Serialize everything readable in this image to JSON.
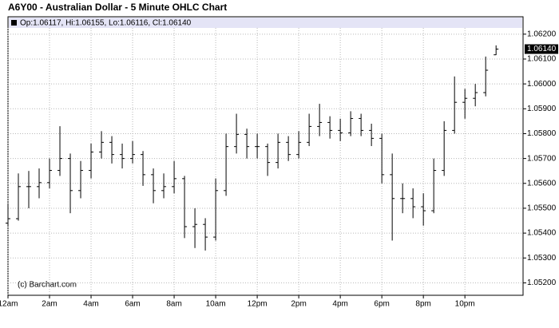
{
  "chart_data": {
    "type": "ohlc",
    "title": "A6Y00 - Australian Dollar - 5 Minute OHLC Chart",
    "legend_text": "Op:1.06117, Hi:1.06155, Lo:1.06116, Cl:1.06140",
    "last_price_label": "1.06140",
    "watermark": "(c) Barchart.com",
    "color": "#000000",
    "grid": true,
    "x": [
      0,
      0.5,
      1,
      1.5,
      2,
      2.5,
      3,
      3.5,
      4,
      4.5,
      5,
      5.5,
      6,
      6.5,
      7,
      7.5,
      8,
      8.5,
      9,
      9.5,
      10,
      10.5,
      11,
      11.5,
      12,
      12.5,
      13,
      13.5,
      14,
      14.5,
      15,
      15.5,
      16,
      16.5,
      17,
      17.5,
      18,
      18.5,
      19,
      19.5,
      20,
      20.5,
      21,
      21.5,
      22,
      22.5,
      23,
      23.5
    ],
    "open": [
      1.0544,
      1.05458,
      1.05587,
      1.05587,
      1.05603,
      1.05652,
      1.057,
      1.05571,
      1.05652,
      1.05726,
      1.05765,
      1.05716,
      1.057,
      1.05716,
      1.05635,
      1.05571,
      1.05587,
      1.05619,
      1.05426,
      1.05435,
      1.05384,
      1.05571,
      1.05748,
      1.05797,
      1.05748,
      1.05748,
      1.05684,
      1.05765,
      1.05716,
      1.05765,
      1.05829,
      1.05845,
      1.05813,
      1.05803,
      1.05861,
      1.05813,
      1.05781,
      1.05635,
      1.05539,
      1.05539,
      1.05506,
      1.0549,
      1.05652,
      1.05813,
      1.05926,
      1.05942,
      1.05965,
      1.06117
    ],
    "high": [
      1.0552,
      1.0564,
      1.0565,
      1.0566,
      1.057,
      1.0583,
      1.0572,
      1.0569,
      1.0576,
      1.0581,
      1.0579,
      1.0576,
      1.0577,
      1.0573,
      1.0566,
      1.0564,
      1.0569,
      1.0563,
      1.055,
      1.0546,
      1.0562,
      1.058,
      1.0588,
      1.0582,
      1.058,
      1.0576,
      1.058,
      1.0579,
      1.0581,
      1.0588,
      1.0592,
      1.0587,
      1.0586,
      1.0589,
      1.0588,
      1.0584,
      1.058,
      1.0572,
      1.056,
      1.0558,
      1.0556,
      1.057,
      1.0585,
      1.0603,
      1.0598,
      1.06,
      1.0611,
      1.06155
    ],
    "low": [
      1.0543,
      1.0545,
      1.055,
      1.0554,
      1.0558,
      1.0563,
      1.0548,
      1.0554,
      1.0562,
      1.057,
      1.0568,
      1.0566,
      1.0568,
      1.0559,
      1.0552,
      1.0554,
      1.0556,
      1.0538,
      1.0534,
      1.0533,
      1.0537,
      1.0555,
      1.0572,
      1.057,
      1.057,
      1.0563,
      1.0566,
      1.0569,
      1.057,
      1.0575,
      1.0579,
      1.0578,
      1.0577,
      1.0579,
      1.0579,
      1.0575,
      1.056,
      1.0537,
      1.0548,
      1.0546,
      1.0543,
      1.0548,
      1.0563,
      1.058,
      1.0586,
      1.0591,
      1.0595,
      1.06116
    ],
    "close": [
      1.05458,
      1.05587,
      1.05587,
      1.05603,
      1.05652,
      1.057,
      1.05571,
      1.05652,
      1.05726,
      1.05765,
      1.05716,
      1.057,
      1.05716,
      1.05635,
      1.05571,
      1.05587,
      1.05619,
      1.05426,
      1.05435,
      1.05384,
      1.05571,
      1.05748,
      1.05797,
      1.05748,
      1.05748,
      1.05684,
      1.05765,
      1.05716,
      1.05765,
      1.05829,
      1.05845,
      1.05813,
      1.05803,
      1.05861,
      1.05813,
      1.05781,
      1.05635,
      1.05539,
      1.05539,
      1.05506,
      1.0549,
      1.05652,
      1.05813,
      1.05926,
      1.05942,
      1.05965,
      1.06055,
      1.0614
    ],
    "xlim": [
      0,
      24.8
    ],
    "xticks": [
      {
        "value": 0,
        "label": "12am"
      },
      {
        "value": 2,
        "label": "2am"
      },
      {
        "value": 4,
        "label": "4am"
      },
      {
        "value": 6,
        "label": "6am"
      },
      {
        "value": 8,
        "label": "8am"
      },
      {
        "value": 10,
        "label": "10am"
      },
      {
        "value": 12,
        "label": "12pm"
      },
      {
        "value": 14,
        "label": "2pm"
      },
      {
        "value": 16,
        "label": "4pm"
      },
      {
        "value": 18,
        "label": "6pm"
      },
      {
        "value": 20,
        "label": "8pm"
      },
      {
        "value": 22,
        "label": "10pm"
      }
    ],
    "ylim": [
      1.0515,
      1.0627
    ],
    "yticks": [
      {
        "value": 1.052,
        "label": "1.05200"
      },
      {
        "value": 1.053,
        "label": "1.05300"
      },
      {
        "value": 1.054,
        "label": "1.05400"
      },
      {
        "value": 1.055,
        "label": "1.05500"
      },
      {
        "value": 1.056,
        "label": "1.05600"
      },
      {
        "value": 1.057,
        "label": "1.05700"
      },
      {
        "value": 1.058,
        "label": "1.05800"
      },
      {
        "value": 1.059,
        "label": "1.05900"
      },
      {
        "value": 1.06,
        "label": "1.06000"
      },
      {
        "value": 1.061,
        "label": "1.06100"
      },
      {
        "value": 1.062,
        "label": "1.06200"
      }
    ]
  }
}
